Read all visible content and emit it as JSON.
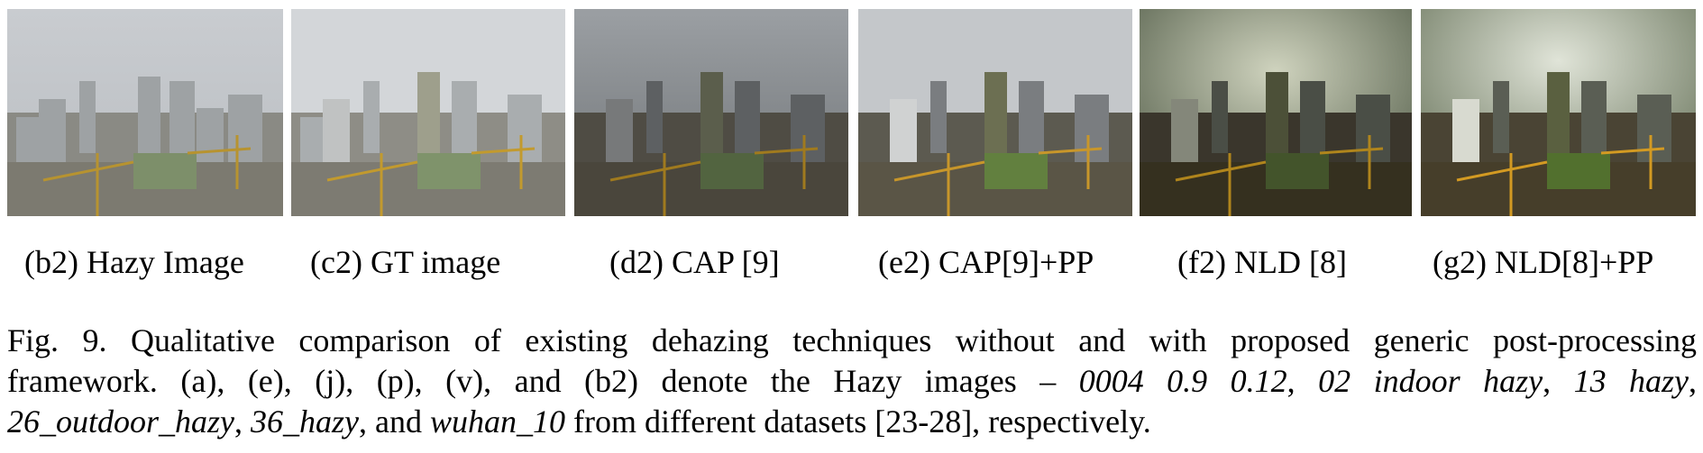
{
  "figure": {
    "panels": [
      {
        "caption": "(b2) Hazy Image",
        "tone": "hazy"
      },
      {
        "caption": "(c2) GT image",
        "tone": "gt"
      },
      {
        "caption": "(d2) CAP [9]",
        "tone": "cap"
      },
      {
        "caption": "(e2) CAP[9]+PP",
        "tone": "cap_pp"
      },
      {
        "caption": "(f2) NLD [8]",
        "tone": "nld"
      },
      {
        "caption": "(g2) NLD[8]+PP",
        "tone": "nld_pp"
      }
    ],
    "caption_text": {
      "line1": "Fig. 9. Qualitative comparison of existing dehazing techniques without and with proposed generic post-processing",
      "line2_a": "framework. (a), (e), (j), (p), (v), and (b2) denote the Hazy images – ",
      "line2_i1": "0004 0.9 0.12",
      "line2_b": ", ",
      "line2_i2": "02 indoor hazy",
      "line2_c": ", ",
      "line2_i3": "13 hazy",
      "line2_d": ",",
      "line3_i1": "26_outdoor_hazy",
      "line3_a": ", ",
      "line3_i2": "36_hazy",
      "line3_b": ", and ",
      "line3_i3": "wuhan_10",
      "line3_c": " from different datasets [23-28], respectively."
    }
  }
}
